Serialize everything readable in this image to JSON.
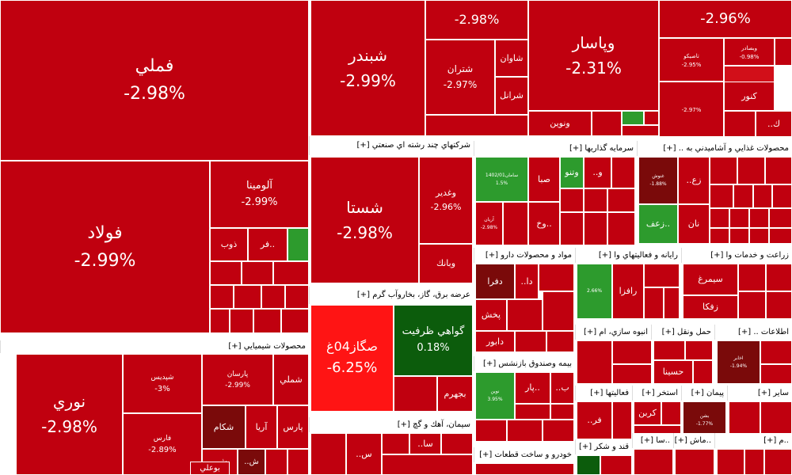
{
  "chart_data": {
    "type": "treemap",
    "colors": {
      "red": "#c0000f",
      "bright_red": "#ff1414",
      "mid_red": "#d20f19",
      "dark_red": "#7a0a0a",
      "green": "#2d9b2d",
      "dark_green": "#0c5c0c"
    },
    "groups": [
      {
        "name": "",
        "tiles": [
          {
            "name": "فملي",
            "value": "-2.98%"
          },
          {
            "name": "فولاد",
            "value": "-2.99%"
          },
          {
            "name": "آلومينا",
            "value": "-2.99%"
          },
          {
            "name": "ذوب",
            "value": ""
          },
          {
            "name": "فر..",
            "value": ""
          }
        ]
      },
      {
        "name": "",
        "tiles": [
          {
            "name": "شبندر",
            "value": "-2.99%"
          },
          {
            "name": "",
            "value": "-2.98%"
          },
          {
            "name": "شاوان",
            "value": ""
          },
          {
            "name": "شتران",
            "value": "-2.97%"
          },
          {
            "name": "شرانل",
            "value": ""
          },
          {
            "name": "ونوين",
            "value": ""
          }
        ]
      },
      {
        "name": "",
        "tiles": [
          {
            "name": "وپاسار",
            "value": "-2.31%"
          },
          {
            "name": "",
            "value": "-2.96%"
          },
          {
            "name": "تاصيكو",
            "value": "-2.95%"
          },
          {
            "name": "وبصادر",
            "value": "-0.98%"
          },
          {
            "name": "كنور",
            "value": ""
          },
          {
            "name": "",
            "value": "-2.97%"
          },
          {
            "name": "..ك",
            "value": ""
          }
        ]
      },
      {
        "name": "محصولات شيميايي [+]",
        "tiles": [
          {
            "name": "نوري",
            "value": "-2.98%"
          },
          {
            "name": "شپديس",
            "value": "-3%"
          },
          {
            "name": "پارسان",
            "value": "-2.99%"
          },
          {
            "name": "شملي",
            "value": ""
          },
          {
            "name": "فارس",
            "value": "-2.89%"
          },
          {
            "name": "شكام",
            "value": ""
          },
          {
            "name": "آريا",
            "value": ""
          },
          {
            "name": "پارس",
            "value": ""
          },
          {
            "name": "..ش",
            "value": ""
          },
          {
            "name": "..ش",
            "value": ""
          },
          {
            "name": "بوعلي",
            "value": ""
          }
        ]
      },
      {
        "name": "شركتهاي چند رشته اي صنعتي [+]",
        "tiles": [
          {
            "name": "شستا",
            "value": "-2.98%"
          },
          {
            "name": "وغدير",
            "value": "-2.96%"
          },
          {
            "name": "وبانك",
            "value": ""
          }
        ]
      },
      {
        "name": "عرضه برق، گاز، بخاروآب گرم [+]",
        "tiles": [
          {
            "name": "صگاز04غ",
            "value": "-6.25%"
          },
          {
            "name": "گواهي ظرفيت",
            "value": "0.18%"
          },
          {
            "name": "بجهرم",
            "value": ""
          }
        ]
      },
      {
        "name": "سيمان، آهك و گچ [+]",
        "tiles": [
          {
            "name": "..س",
            "value": ""
          },
          {
            "name": "..سا",
            "value": ""
          }
        ]
      },
      {
        "name": "سرمايه گذاريها [+]",
        "tiles": [
          {
            "name": "سامان1402/01",
            "value": "1.5%"
          },
          {
            "name": "صبا",
            "value": ""
          },
          {
            "name": "وتنو",
            "value": ""
          },
          {
            "name": "..و",
            "value": ""
          },
          {
            "name": "آريان",
            "value": "-2.98%"
          },
          {
            "name": "وخ..",
            "value": ""
          }
        ]
      },
      {
        "name": "مواد و محصولات دارو [+]",
        "tiles": [
          {
            "name": "دفرا",
            "value": ""
          },
          {
            "name": "..دا",
            "value": ""
          },
          {
            "name": "پخش",
            "value": ""
          },
          {
            "name": "دابور",
            "value": ""
          }
        ]
      },
      {
        "name": "بيمه وصندوق بازنشس [+]",
        "tiles": [
          {
            "name": "نوين",
            "value": "3.95%"
          },
          {
            "name": "پار..",
            "value": ""
          },
          {
            "name": "..ب",
            "value": ""
          }
        ]
      },
      {
        "name": "خودرو و ساخت قطعات [+]",
        "tiles": []
      },
      {
        "name": "محصولات غذايي و آشاميدني به .. [+]",
        "tiles": [
          {
            "name": "غنوش",
            "value": "-1.88%"
          },
          {
            "name": "..زع",
            "value": ""
          },
          {
            "name": "زعف..",
            "value": ""
          },
          {
            "name": "نان",
            "value": ""
          }
        ]
      },
      {
        "name": "رايانه و فعاليتهاي وا [+]",
        "tiles": [
          {
            "name": "",
            "value": "2.66%"
          },
          {
            "name": "رافزا",
            "value": ""
          }
        ]
      },
      {
        "name": "زراعت و خدمات وا [+]",
        "tiles": [
          {
            "name": "سيمرغ",
            "value": ""
          },
          {
            "name": "زفكا",
            "value": ""
          }
        ]
      },
      {
        "name": "انبوه سازي، ام [+]",
        "tiles": []
      },
      {
        "name": "حمل ونقل [+]",
        "tiles": [
          {
            "name": "حسينا",
            "value": ""
          }
        ]
      },
      {
        "name": "اطلاعات .. [+]",
        "tiles": [
          {
            "name": "اخابر",
            "value": "-1.94%"
          }
        ]
      },
      {
        "name": "فعاليتها [+]",
        "tiles": [
          {
            "name": "..فر",
            "value": ""
          }
        ]
      },
      {
        "name": "استخر [+]",
        "tiles": [
          {
            "name": "كربن",
            "value": ""
          }
        ]
      },
      {
        "name": "پيمان [+]",
        "tiles": [
          {
            "name": "بشن",
            "value": "-1.77%"
          }
        ]
      },
      {
        "name": "ساير [+]",
        "tiles": []
      },
      {
        "name": "قند و شكر [+]",
        "tiles": []
      },
      {
        "name": "..سا [+]",
        "tiles": []
      },
      {
        "name": "..ماش [+]",
        "tiles": []
      },
      {
        "name": "..م [+]",
        "tiles": []
      }
    ]
  }
}
